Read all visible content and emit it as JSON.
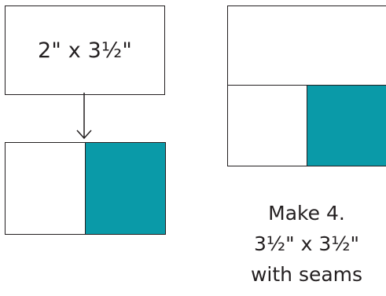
{
  "left_diagram": {
    "cut_size_label": "2\" x 3½\""
  },
  "right_diagram": {
    "caption_lines": [
      "Make 4.",
      "3½\" x 3½\"",
      "with seams"
    ]
  },
  "colors": {
    "teal": "#0a9aa8",
    "outline": "#231f20",
    "background": "#ffffff"
  }
}
